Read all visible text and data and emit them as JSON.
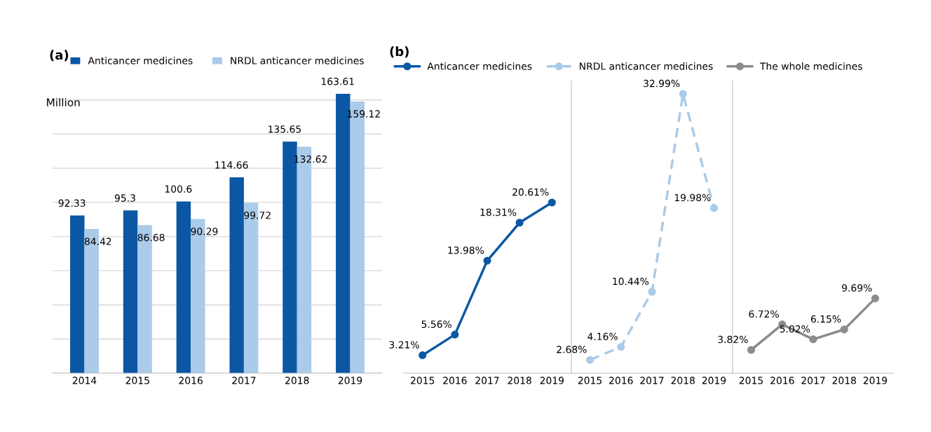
{
  "chart_data": [
    {
      "type": "bar",
      "title": "(a)",
      "categories": [
        "2014",
        "2015",
        "2016",
        "2017",
        "2018",
        "2019"
      ],
      "yticks": [
        {
          "value": 0,
          "label": null
        },
        {
          "value": 20,
          "label": null
        },
        {
          "value": 40,
          "label": null
        },
        {
          "value": 60,
          "label": null
        },
        {
          "value": 80,
          "label": null
        },
        {
          "value": 100,
          "label": null
        },
        {
          "value": 120,
          "label": null
        },
        {
          "value": 140,
          "label": null
        },
        {
          "value": 160,
          "label": null
        }
      ],
      "tick_labels": "x",
      "grid": "y",
      "legend": "top",
      "data_labels": true,
      "annotations": [
        "Million"
      ],
      "series": [
        {
          "name": "Anticancer medicines",
          "color": "#0b57a4",
          "values": [
            92.33,
            95.3,
            100.6,
            114.66,
            135.65,
            163.61
          ]
        },
        {
          "name": "NRDL anticancer medicines",
          "color": "#aacbe9",
          "values": [
            84.42,
            86.68,
            90.29,
            99.72,
            132.62,
            159.12
          ]
        }
      ]
    },
    {
      "type": "line",
      "title": "(b)",
      "categories": [
        "2015",
        "2016",
        "2017",
        "2018",
        "2019"
      ],
      "tick_labels": "x",
      "legend": "top",
      "marker": "circle",
      "series": [
        {
          "name": "Anticancer medicines",
          "color": "#0b57a4",
          "line_style": "solid",
          "values": [
            3.21,
            5.56,
            13.98,
            18.31,
            20.61
          ],
          "value_labels": [
            "3.21%",
            "5.56%",
            "13.98%",
            "18.31%",
            "20.61%"
          ]
        }
      ]
    },
    {
      "type": "line",
      "categories": [
        "2015",
        "2016",
        "2017",
        "2018",
        "2019"
      ],
      "tick_labels": "x",
      "legend": "top",
      "marker": "circle",
      "series": [
        {
          "name": "NRDL anticancer medicines",
          "color": "#aacbe9",
          "line_style": "dashed",
          "values": [
            2.68,
            4.16,
            10.44,
            32.99,
            19.98
          ],
          "value_labels": [
            "2.68%",
            "4.16%",
            "10.44%",
            "32.99%",
            "19.98%"
          ]
        }
      ]
    },
    {
      "type": "line",
      "categories": [
        "2015",
        "2016",
        "2017",
        "2018",
        "2019"
      ],
      "tick_labels": "x",
      "legend": "top",
      "marker": "circle",
      "series": [
        {
          "name": "The whole medicines",
          "color": "#8c8c8c",
          "line_style": "solid",
          "values": [
            3.82,
            6.72,
            5.02,
            6.15,
            9.69
          ],
          "value_labels": [
            "3.82%",
            "6.72%",
            "5.02%",
            "6.15%",
            "9.69%"
          ]
        }
      ]
    }
  ]
}
